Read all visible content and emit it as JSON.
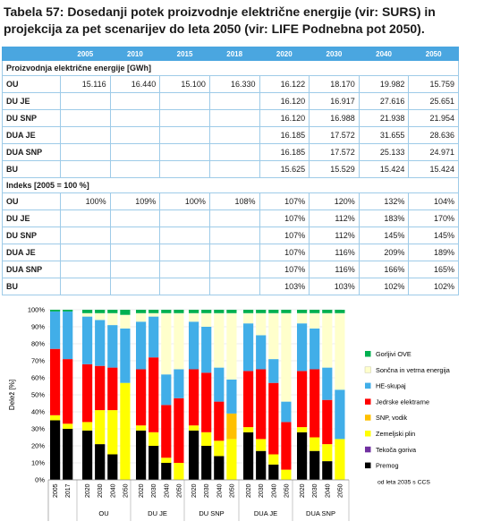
{
  "caption": "Tabela 57: Dosedanji potek proizvodnje električne energije (vir: SURS) in projekcija za pet scenarijev do leta 2050 (vir: LIFE Podnebna pot 2050).",
  "table": {
    "headers": [
      "",
      "2005",
      "2010",
      "2015",
      "2018",
      "2020",
      "2030",
      "2040",
      "2050"
    ],
    "section1": "Proizvodnja električne energije [GWh]",
    "rows1": [
      [
        "OU",
        "15.116",
        "16.440",
        "15.100",
        "16.330",
        "16.122",
        "18.170",
        "19.982",
        "15.759"
      ],
      [
        "DU JE",
        "",
        "",
        "",
        "",
        "16.120",
        "16.917",
        "27.616",
        "25.651"
      ],
      [
        "DU SNP",
        "",
        "",
        "",
        "",
        "16.120",
        "16.988",
        "21.938",
        "21.954"
      ],
      [
        "DUA JE",
        "",
        "",
        "",
        "",
        "16.185",
        "17.572",
        "31.655",
        "28.636"
      ],
      [
        "DUA SNP",
        "",
        "",
        "",
        "",
        "16.185",
        "17.572",
        "25.133",
        "24.971"
      ],
      [
        "BU",
        "",
        "",
        "",
        "",
        "15.625",
        "15.529",
        "15.424",
        "15.424"
      ]
    ],
    "section2": "Indeks [2005 = 100 %]",
    "rows2": [
      [
        "OU",
        "100%",
        "109%",
        "100%",
        "108%",
        "107%",
        "120%",
        "132%",
        "104%"
      ],
      [
        "DU JE",
        "",
        "",
        "",
        "",
        "107%",
        "112%",
        "183%",
        "170%"
      ],
      [
        "DU SNP",
        "",
        "",
        "",
        "",
        "107%",
        "112%",
        "145%",
        "145%"
      ],
      [
        "DUA JE",
        "",
        "",
        "",
        "",
        "107%",
        "116%",
        "209%",
        "189%"
      ],
      [
        "DUA SNP",
        "",
        "",
        "",
        "",
        "107%",
        "116%",
        "166%",
        "165%"
      ],
      [
        "BU",
        "",
        "",
        "",
        "",
        "103%",
        "103%",
        "102%",
        "102%"
      ]
    ]
  },
  "chart_data": {
    "type": "bar",
    "stacked": true,
    "ylabel": "Delež [%]",
    "ylim": [
      0,
      100
    ],
    "yticks": [
      "0%",
      "10%",
      "20%",
      "30%",
      "40%",
      "50%",
      "60%",
      "70%",
      "80%",
      "90%",
      "100%"
    ],
    "grid": true,
    "legend_position": "right",
    "legend_note": "od leta 2035 s CCS",
    "groups": [
      {
        "name": "",
        "categories": [
          "2005",
          "2017"
        ]
      },
      {
        "name": "OU",
        "categories": [
          "2020",
          "2030",
          "2040",
          "2050"
        ]
      },
      {
        "name": "DU JE",
        "categories": [
          "2020",
          "2030",
          "2040",
          "2050"
        ]
      },
      {
        "name": "DU SNP",
        "categories": [
          "2020",
          "2030",
          "2040",
          "2050"
        ]
      },
      {
        "name": "DUA JE",
        "categories": [
          "2020",
          "2030",
          "2040",
          "2050"
        ]
      },
      {
        "name": "DUA SNP",
        "categories": [
          "2020",
          "2030",
          "2040",
          "2050"
        ]
      }
    ],
    "series": [
      {
        "name": "Premog",
        "color": "#000000",
        "values": [
          35,
          30,
          29,
          21,
          15,
          0,
          29,
          20,
          10,
          0,
          29,
          20,
          14,
          0,
          28,
          17,
          9,
          0,
          28,
          17,
          11,
          0
        ]
      },
      {
        "name": "Tekoča goriva",
        "color": "#7030a0",
        "values": [
          0,
          0,
          0,
          0,
          0,
          0,
          0,
          0,
          0,
          0,
          0,
          0,
          0,
          0,
          0,
          0,
          0,
          0,
          0,
          0,
          0,
          0
        ]
      },
      {
        "name": "Zemeljski plin",
        "color": "#ffff00",
        "values": [
          3,
          3,
          5,
          20,
          26,
          57,
          3,
          8,
          3,
          10,
          3,
          8,
          9,
          24,
          3,
          7,
          6,
          6,
          3,
          8,
          10,
          24
        ]
      },
      {
        "name": "SNP, vodik",
        "color": "#ffc000",
        "values": [
          0,
          0,
          0,
          0,
          0,
          0,
          0,
          0,
          0,
          0,
          0,
          0,
          0,
          15,
          0,
          0,
          0,
          0,
          0,
          0,
          0,
          0
        ]
      },
      {
        "name": "Jedrske elektrarne",
        "color": "#ff0000",
        "values": [
          39,
          38,
          34,
          26,
          25,
          0,
          33,
          44,
          31,
          38,
          33,
          35,
          23,
          0,
          33,
          41,
          42,
          28,
          33,
          40,
          26,
          0
        ]
      },
      {
        "name": "HE-skupaj",
        "color": "#41aee8",
        "values": [
          22,
          28,
          28,
          27,
          25,
          32,
          28,
          24,
          18,
          17,
          28,
          27,
          20,
          20,
          28,
          20,
          14,
          12,
          28,
          24,
          19,
          29
        ]
      },
      {
        "name": "Sončna in vetrna energija",
        "color": "#ffffcc",
        "values": [
          0,
          0,
          2,
          4,
          7,
          8,
          5,
          2,
          36,
          33,
          5,
          8,
          32,
          39,
          6,
          13,
          27,
          52,
          6,
          9,
          32,
          45
        ]
      },
      {
        "name": "Gorljivi OVE",
        "color": "#00b050",
        "values": [
          1,
          1,
          2,
          2,
          2,
          3,
          2,
          2,
          2,
          2,
          2,
          2,
          2,
          2,
          2,
          2,
          2,
          2,
          2,
          2,
          2,
          2
        ]
      }
    ]
  }
}
